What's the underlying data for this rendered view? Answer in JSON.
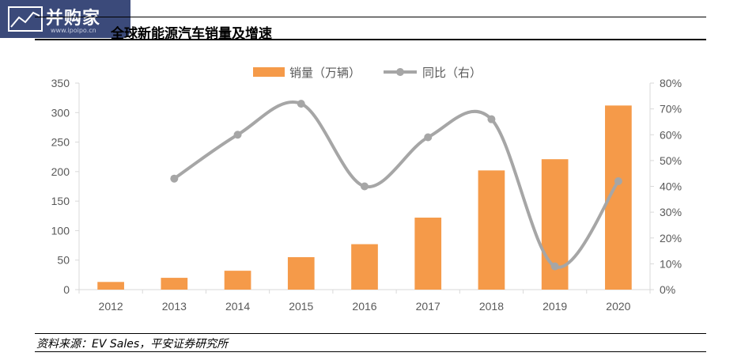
{
  "logo": {
    "text": "并购家",
    "url": "www.ipoipo.cn"
  },
  "header": {
    "title": "全球新能源汽车销量及增速"
  },
  "source": "资料来源：EV Sales，平安证券研究所",
  "colors": {
    "bar": "#f59a49",
    "line": "#a6a6a6",
    "axis": "#d9d9d9",
    "text": "#595959"
  },
  "chart_data": {
    "type": "bar",
    "categories": [
      "2012",
      "2013",
      "2014",
      "2015",
      "2016",
      "2017",
      "2018",
      "2019",
      "2020"
    ],
    "series": [
      {
        "name": "销量（万辆）",
        "type": "bar",
        "axis": "left",
        "values": [
          13,
          20,
          32,
          55,
          77,
          122,
          202,
          221,
          312
        ]
      },
      {
        "name": "同比（右）",
        "type": "line",
        "axis": "right",
        "smooth": true,
        "values": [
          null,
          0.43,
          0.6,
          0.72,
          0.4,
          0.59,
          0.66,
          0.09,
          0.42
        ]
      }
    ],
    "ylim": [
      0,
      350
    ],
    "yticks": [
      "0",
      "50",
      "100",
      "150",
      "200",
      "250",
      "300",
      "350"
    ],
    "y2lim": [
      0,
      0.8
    ],
    "y2ticks": [
      "0%",
      "10%",
      "20%",
      "30%",
      "40%",
      "50%",
      "60%",
      "70%",
      "80%"
    ],
    "legend": "top-center",
    "grid": false
  }
}
